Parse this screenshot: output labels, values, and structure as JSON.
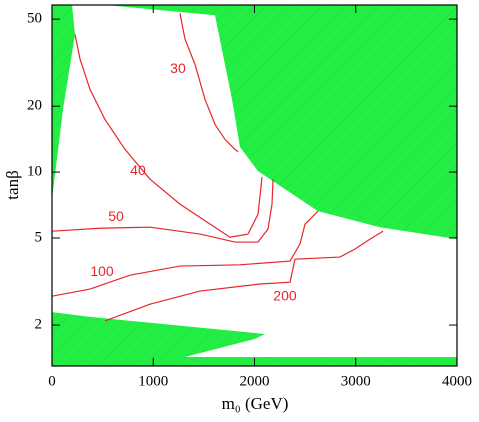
{
  "chart_data": {
    "type": "contour",
    "x_label": "m₀ (GeV)",
    "y_label": "tanβ",
    "xlim": [
      0,
      4000
    ],
    "xticks": [
      0,
      1000,
      2000,
      3000,
      4000
    ],
    "ylim": [
      1.3,
      58
    ],
    "yticks": [
      2,
      5,
      10,
      20,
      50
    ],
    "y_log": true,
    "regions": [
      {
        "color": "#22ee44",
        "x": [
          0,
          198,
          227,
          109,
          0
        ],
        "y": [
          58,
          58,
          42.6,
          19.4,
          7.5
        ]
      },
      {
        "color": "#22ee44",
        "x": [
          523,
          4000,
          4000,
          3240,
          2627,
          2035,
          1857,
          1778,
          1610
        ],
        "y": [
          58,
          58,
          4.94,
          5.6,
          6.63,
          10.1,
          13.0,
          21.5,
          52.1
        ]
      },
      {
        "color": "#22ee44",
        "x": [
          0,
          375,
          2104,
          2005,
          968,
          0
        ],
        "y": [
          2.29,
          2.18,
          1.82,
          1.73,
          1.3,
          1.3
        ]
      },
      {
        "color": "#22ee44",
        "x": [
          968,
          4000,
          4000,
          968
        ],
        "y": [
          1.43,
          1.43,
          1.3,
          1.3
        ]
      }
    ],
    "contours": [
      {
        "level": 30,
        "color": "#e8262a",
        "label_at": [
          1244,
          29.5
        ],
        "x": [
          1264,
          1314,
          1412,
          1511,
          1610,
          1709,
          1807,
          1837
        ],
        "y": [
          53.2,
          40.4,
          31.1,
          21.5,
          16.5,
          14.1,
          12.7,
          12.4
        ]
      },
      {
        "level": 40,
        "color": "#e8262a",
        "label_at": [
          849,
          10.1
        ],
        "x": [
          227,
          277,
          375,
          523,
          721,
          968,
          1264,
          1561,
          1758,
          1936,
          2035,
          2074
        ],
        "y": [
          42.6,
          32.8,
          23.9,
          17.4,
          12.7,
          9.28,
          7.14,
          5.78,
          5.04,
          5.21,
          6.42,
          9.48
        ]
      },
      {
        "level": 50,
        "color": "#e8262a",
        "label_at": [
          632,
          6.22
        ],
        "x": [
          0,
          474,
          968,
          1462,
          1807,
          2035,
          2133,
          2173,
          2183
        ],
        "y": [
          5.37,
          5.54,
          5.6,
          5.21,
          4.79,
          4.79,
          5.49,
          7.14,
          9.28
        ]
      },
      {
        "level": 100,
        "color": "#e8262a",
        "label_at": [
          494,
          3.49
        ],
        "x": [
          0,
          375,
          770,
          1264,
          1857,
          2351,
          2449,
          2499,
          2627
        ],
        "y": [
          2.71,
          2.92,
          3.38,
          3.72,
          3.77,
          3.92,
          4.69,
          5.78,
          6.63
        ]
      },
      {
        "level": 200,
        "color": "#e8262a",
        "label_at": [
          2301,
          2.69
        ],
        "x": [
          523,
          968,
          1462,
          2054,
          2351,
          2400,
          2844,
          2993,
          3141,
          3269
        ],
        "y": [
          2.09,
          2.49,
          2.86,
          3.08,
          3.14,
          4.0,
          4.09,
          4.45,
          4.94,
          5.37
        ]
      }
    ]
  }
}
